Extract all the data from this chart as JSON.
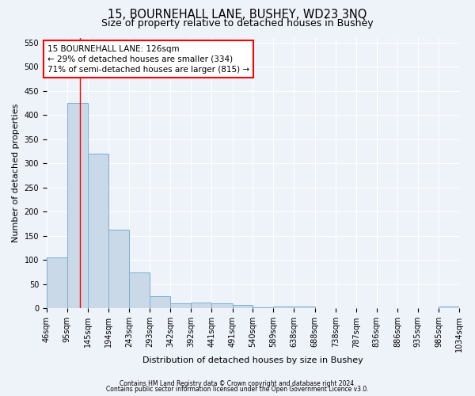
{
  "title1": "15, BOURNEHALL LANE, BUSHEY, WD23 3NQ",
  "title2": "Size of property relative to detached houses in Bushey",
  "xlabel": "Distribution of detached houses by size in Bushey",
  "ylabel": "Number of detached properties",
  "bin_edges": [
    46,
    95,
    145,
    194,
    243,
    293,
    342,
    392,
    441,
    491,
    540,
    589,
    638,
    688,
    738,
    787,
    836,
    886,
    935,
    985,
    1034
  ],
  "bar_heights": [
    105,
    425,
    320,
    163,
    75,
    25,
    10,
    12,
    10,
    7,
    3,
    4,
    4,
    0,
    0,
    0,
    0,
    0,
    0,
    4
  ],
  "bar_color": "#c9d9e8",
  "bar_edge_color": "#7bafd4",
  "red_line_x": 126,
  "annotation_text": "15 BOURNEHALL LANE: 126sqm\n← 29% of detached houses are smaller (334)\n71% of semi-detached houses are larger (815) →",
  "annotation_box_color": "white",
  "annotation_box_edge": "red",
  "annotation_fontsize": 7.5,
  "ylim": [
    0,
    560
  ],
  "yticks": [
    0,
    50,
    100,
    150,
    200,
    250,
    300,
    350,
    400,
    450,
    500,
    550
  ],
  "footer1": "Contains HM Land Registry data © Crown copyright and database right 2024.",
  "footer2": "Contains public sector information licensed under the Open Government Licence v3.0.",
  "bg_color": "#eef2f9",
  "title_fontsize": 10.5,
  "title2_fontsize": 9,
  "label_fontsize": 8,
  "tick_fontsize": 7
}
